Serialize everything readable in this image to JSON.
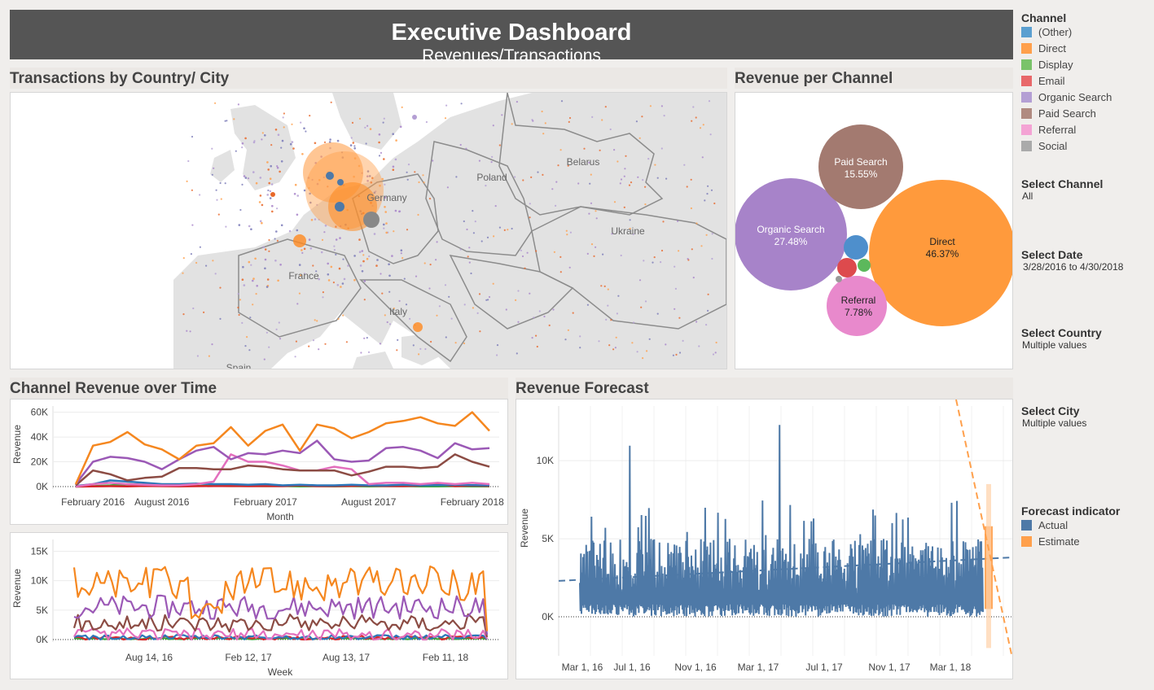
{
  "header": {
    "title": "Executive Dashboard",
    "subtitle": "Revenues/Transactions"
  },
  "panels": {
    "map_title": "Transactions by Country/ City",
    "bubble_title": "Revenue per Channel",
    "revenue_time_title": "Channel Revenue over Time",
    "forecast_title": "Revenue Forecast"
  },
  "map": {
    "labels": [
      "Belarus",
      "Poland",
      "Germany",
      "Ukraine",
      "France",
      "Italy",
      "Spain"
    ]
  },
  "legend": {
    "title": "Channel",
    "items": [
      {
        "label": "(Other)",
        "color": "#5b9fd0"
      },
      {
        "label": "Direct",
        "color": "#ffa04c"
      },
      {
        "label": "Display",
        "color": "#7ac36a"
      },
      {
        "label": "Email",
        "color": "#e8686a"
      },
      {
        "label": "Organic Search",
        "color": "#b49fd4"
      },
      {
        "label": "Paid Search",
        "color": "#b08a80"
      },
      {
        "label": "Referral",
        "color": "#f4a3d4"
      },
      {
        "label": "Social",
        "color": "#aaaaaa"
      }
    ]
  },
  "filters": {
    "channel": {
      "label": "Select Channel",
      "value": "All"
    },
    "date": {
      "label": "Select Date",
      "value": "3/28/2016 to 4/30/2018"
    },
    "country": {
      "label": "Select Country",
      "value": "Multiple values"
    },
    "city": {
      "label": "Select City",
      "value": "Multiple values"
    }
  },
  "forecast_legend": {
    "title": "Forecast indicator",
    "items": [
      {
        "label": "Actual",
        "color": "#4e79a7"
      },
      {
        "label": "Estimate",
        "color": "#ffa04c"
      }
    ]
  },
  "chart_data": [
    {
      "type": "bubble",
      "title": "Revenue per Channel",
      "slices": [
        {
          "label": "Direct",
          "value": "46.37%",
          "color": "#ff9a3c"
        },
        {
          "label": "Organic Search",
          "value": "27.48%",
          "color": "#a783c9"
        },
        {
          "label": "Paid Search",
          "value": "15.55%",
          "color": "#a37a70"
        },
        {
          "label": "Referral",
          "value": "7.78%",
          "color": "#e889cc"
        },
        {
          "label": "(Other)",
          "value": "",
          "color": "#4e8fcc"
        },
        {
          "label": "Email",
          "value": "",
          "color": "#dd4a4d"
        },
        {
          "label": "Display",
          "value": "",
          "color": "#5cb85c"
        },
        {
          "label": "Social",
          "value": "",
          "color": "#999999"
        }
      ]
    },
    {
      "type": "line",
      "title": "Channel Revenue over Time",
      "xlabel": "Month",
      "ylabel": "Revenue",
      "ylim": [
        0,
        65000
      ],
      "yticks": [
        0,
        20000,
        40000,
        60000
      ],
      "ytick_labels": [
        "0K",
        "20K",
        "40K",
        "60K"
      ],
      "x_tick_labels": [
        {
          "label": "February 2016",
          "index": 1
        },
        {
          "label": "August 2016",
          "index": 5
        },
        {
          "label": "February 2017",
          "index": 11
        },
        {
          "label": "August 2017",
          "index": 17
        },
        {
          "label": "February 2018",
          "index": 23
        }
      ],
      "series": [
        {
          "name": "Direct",
          "color": "#f5871f",
          "values": [
            2000,
            33000,
            36000,
            44000,
            34000,
            30000,
            22000,
            33000,
            35000,
            48000,
            33000,
            45000,
            50000,
            29000,
            50000,
            47000,
            39000,
            44000,
            51000,
            53000,
            56000,
            51000,
            49000,
            60000,
            45000
          ]
        },
        {
          "name": "Organic Search",
          "color": "#9b59b6",
          "values": [
            2000,
            20000,
            24000,
            23000,
            20000,
            14000,
            22000,
            29000,
            32000,
            22000,
            27000,
            26000,
            29000,
            27000,
            37000,
            22000,
            20000,
            21000,
            31000,
            32000,
            29000,
            23000,
            35000,
            30000,
            31000
          ]
        },
        {
          "name": "Paid Search",
          "color": "#8c4c44",
          "values": [
            1000,
            13000,
            10000,
            5000,
            7000,
            8000,
            15000,
            15000,
            14000,
            14000,
            17000,
            16000,
            14000,
            13000,
            13000,
            13000,
            9000,
            12000,
            16000,
            16000,
            15000,
            16000,
            26000,
            20000,
            16000
          ]
        },
        {
          "name": "Referral",
          "color": "#e36fbd",
          "values": [
            0,
            2000,
            3000,
            2000,
            1500,
            1000,
            1000,
            2000,
            4000,
            26000,
            20000,
            20000,
            17000,
            13000,
            13000,
            16000,
            14000,
            2000,
            3000,
            3000,
            2000,
            3000,
            2000,
            3000,
            2000
          ]
        },
        {
          "name": "(Other)",
          "color": "#2c76b8",
          "values": [
            500,
            2000,
            5000,
            4000,
            3000,
            2000,
            2000,
            2500,
            2000,
            2000,
            1500,
            2000,
            1000,
            1500,
            1000,
            1000,
            1500,
            1000,
            1000,
            1500,
            1000,
            1200,
            1500,
            1200,
            1000
          ]
        },
        {
          "name": "Email",
          "color": "#d6262b",
          "values": [
            0,
            200,
            300,
            200,
            500,
            300,
            200,
            300,
            400,
            500,
            300,
            400,
            300,
            1000,
            300,
            400,
            500,
            800,
            400,
            300,
            800,
            2000,
            300,
            800,
            500
          ]
        },
        {
          "name": "Display",
          "color": "#3ba53b",
          "values": [
            0,
            300,
            1000,
            2000,
            1500,
            1000,
            800,
            500,
            600,
            400,
            500,
            300,
            400,
            200,
            300,
            200,
            300,
            200,
            300,
            300,
            200,
            200,
            300,
            200,
            200
          ]
        }
      ]
    },
    {
      "type": "line",
      "title": "",
      "xlabel": "Week",
      "ylabel": "Revenue",
      "ylim": [
        0,
        17000
      ],
      "yticks": [
        0,
        5000,
        10000,
        15000
      ],
      "ytick_labels": [
        "0K",
        "5K",
        "10K",
        "15K"
      ],
      "x_tick_labels": [
        "Aug 14, 16",
        "Feb 12, 17",
        "Aug 13, 17",
        "Feb 11, 18"
      ]
    },
    {
      "type": "line",
      "title": "Revenue Forecast",
      "ylabel": "Revenue",
      "ylim": [
        -2500,
        13500
      ],
      "yticks": [
        0,
        5000,
        10000
      ],
      "ytick_labels": [
        "0K",
        "5K",
        "10K"
      ],
      "x_tick_labels": [
        "Mar 1, 16",
        "Jul 1, 16",
        "Nov 1, 16",
        "Mar 1, 17",
        "Jul 1, 17",
        "Nov 1, 17",
        "Mar 1, 18"
      ],
      "series": [
        {
          "name": "Actual",
          "color": "#4e79a7"
        },
        {
          "name": "Estimate",
          "color": "#ffa04c"
        }
      ]
    }
  ]
}
